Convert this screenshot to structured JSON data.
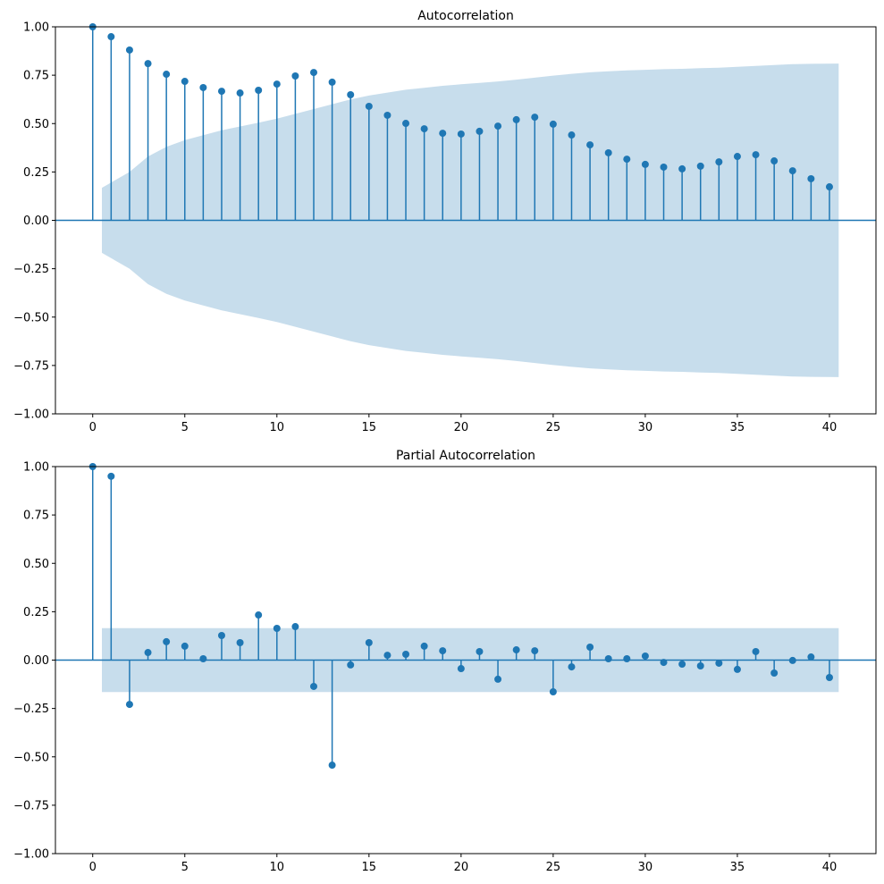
{
  "chart_data": [
    {
      "type": "stem",
      "title": "Autocorrelation",
      "color": "#1f77b4",
      "x": [
        0,
        1,
        2,
        3,
        4,
        5,
        6,
        7,
        8,
        9,
        10,
        11,
        12,
        13,
        14,
        15,
        16,
        17,
        18,
        19,
        20,
        21,
        22,
        23,
        24,
        25,
        26,
        27,
        28,
        29,
        30,
        31,
        32,
        33,
        34,
        35,
        36,
        37,
        38,
        39,
        40
      ],
      "values": [
        1.0,
        0.949,
        0.88,
        0.81,
        0.755,
        0.718,
        0.686,
        0.667,
        0.658,
        0.672,
        0.704,
        0.746,
        0.764,
        0.714,
        0.649,
        0.589,
        0.543,
        0.501,
        0.473,
        0.45,
        0.446,
        0.46,
        0.487,
        0.52,
        0.533,
        0.497,
        0.441,
        0.39,
        0.349,
        0.316,
        0.289,
        0.275,
        0.266,
        0.28,
        0.302,
        0.33,
        0.339,
        0.307,
        0.256,
        0.215,
        0.173
      ],
      "band_x": [
        0.5,
        2,
        3,
        4,
        5,
        6,
        7,
        8,
        9,
        10,
        11,
        12,
        13,
        14,
        15,
        16,
        17,
        18,
        19,
        20,
        21,
        22,
        23,
        24,
        25,
        26,
        27,
        28,
        29,
        30,
        31,
        32,
        33,
        34,
        35,
        36,
        37,
        38,
        39,
        40.5
      ],
      "band_upper": [
        0.168,
        0.25,
        0.33,
        0.38,
        0.415,
        0.44,
        0.465,
        0.485,
        0.505,
        0.525,
        0.55,
        0.575,
        0.6,
        0.625,
        0.645,
        0.66,
        0.675,
        0.685,
        0.695,
        0.703,
        0.71,
        0.718,
        0.727,
        0.737,
        0.748,
        0.757,
        0.765,
        0.77,
        0.775,
        0.778,
        0.781,
        0.783,
        0.786,
        0.789,
        0.793,
        0.798,
        0.803,
        0.807,
        0.809,
        0.81
      ],
      "band_lower": [
        -0.168,
        -0.25,
        -0.33,
        -0.38,
        -0.415,
        -0.44,
        -0.465,
        -0.485,
        -0.505,
        -0.525,
        -0.55,
        -0.575,
        -0.6,
        -0.625,
        -0.645,
        -0.66,
        -0.675,
        -0.685,
        -0.695,
        -0.703,
        -0.71,
        -0.718,
        -0.727,
        -0.737,
        -0.748,
        -0.757,
        -0.765,
        -0.77,
        -0.775,
        -0.778,
        -0.781,
        -0.783,
        -0.786,
        -0.789,
        -0.793,
        -0.798,
        -0.803,
        -0.807,
        -0.809,
        -0.81
      ],
      "xlim": [
        -2.025,
        42.525
      ],
      "ylim": [
        -1,
        1
      ],
      "xticks": [
        0,
        5,
        10,
        15,
        20,
        25,
        30,
        35,
        40
      ],
      "yticks": [
        {
          "value": -1,
          "label": "−1.00"
        },
        {
          "value": -0.75,
          "label": "−0.75"
        },
        {
          "value": -0.5,
          "label": "−0.50"
        },
        {
          "value": -0.25,
          "label": "−0.25"
        },
        {
          "value": 0,
          "label": "0.00"
        },
        {
          "value": 0.25,
          "label": "0.25"
        },
        {
          "value": 0.5,
          "label": "0.50"
        },
        {
          "value": 0.75,
          "label": "0.75"
        },
        {
          "value": 1,
          "label": "1.00"
        }
      ]
    },
    {
      "type": "stem",
      "title": "Partial Autocorrelation",
      "color": "#1f77b4",
      "x": [
        0,
        1,
        2,
        3,
        4,
        5,
        6,
        7,
        8,
        9,
        10,
        11,
        12,
        13,
        14,
        15,
        16,
        17,
        18,
        19,
        20,
        21,
        22,
        23,
        24,
        25,
        26,
        27,
        28,
        29,
        30,
        31,
        32,
        33,
        34,
        35,
        36,
        37,
        38,
        39,
        40
      ],
      "values": [
        1.0,
        0.95,
        -0.229,
        0.039,
        0.095,
        0.072,
        0.007,
        0.127,
        0.09,
        0.233,
        0.164,
        0.173,
        -0.136,
        -0.543,
        -0.025,
        0.09,
        0.025,
        0.03,
        0.072,
        0.048,
        -0.044,
        0.044,
        -0.099,
        0.053,
        0.048,
        -0.164,
        -0.035,
        0.067,
        0.007,
        0.007,
        0.021,
        -0.012,
        -0.021,
        -0.03,
        -0.016,
        -0.048,
        0.044,
        -0.067,
        -0.002,
        0.016,
        -0.09
      ],
      "band_x": [
        0.5,
        40.5
      ],
      "band_upper": [
        0.165,
        0.165
      ],
      "band_lower": [
        -0.165,
        -0.165
      ],
      "xlim": [
        -2.025,
        42.525
      ],
      "ylim": [
        -1,
        1
      ],
      "xticks": [
        0,
        5,
        10,
        15,
        20,
        25,
        30,
        35,
        40
      ],
      "yticks": [
        {
          "value": -1,
          "label": "−1.00"
        },
        {
          "value": -0.75,
          "label": "−0.75"
        },
        {
          "value": -0.5,
          "label": "−0.50"
        },
        {
          "value": -0.25,
          "label": "−0.25"
        },
        {
          "value": 0,
          "label": "0.00"
        },
        {
          "value": 0.25,
          "label": "0.25"
        },
        {
          "value": 0.5,
          "label": "0.50"
        },
        {
          "value": 0.75,
          "label": "0.75"
        },
        {
          "value": 1,
          "label": "1.00"
        }
      ]
    }
  ]
}
